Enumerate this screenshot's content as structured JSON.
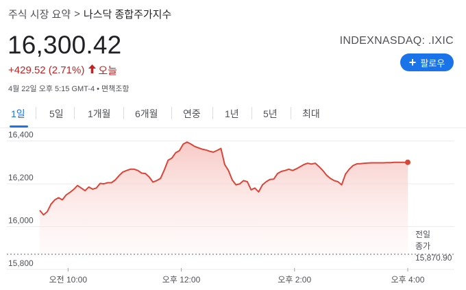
{
  "breadcrumb": {
    "root": "주식 시장 요약",
    "separator": ">",
    "current": "나스닥 종합주가지수"
  },
  "quote": {
    "price": "16,300.42",
    "change": "+429.52 (2.71%)",
    "direction_icon": "arrow-up-icon",
    "period": "오늘",
    "timestamp": "4월 22일 오후 5:15 GMT-4 • 면책조항",
    "ticker": "INDEXNASDAQ: .IXIC"
  },
  "follow_button": {
    "label": "팔로우",
    "icon": "plus-icon",
    "color": "#1a73e8"
  },
  "tabs": [
    {
      "label": "1일",
      "active": true
    },
    {
      "label": "5일",
      "active": false
    },
    {
      "label": "1개월",
      "active": false
    },
    {
      "label": "6개월",
      "active": false
    },
    {
      "label": "연중",
      "active": false
    },
    {
      "label": "1년",
      "active": false
    },
    {
      "label": "5년",
      "active": false
    },
    {
      "label": "최대",
      "active": false
    }
  ],
  "colors": {
    "down_up_accent": "#c5221f",
    "line": "#db4437",
    "fill_top": "#f6c3bf",
    "accent": "#1a73e8"
  },
  "chart_data": {
    "type": "line",
    "title": "",
    "xlabel": "",
    "ylabel": "",
    "y_ticks": [
      "16,400",
      "16,200",
      "16,000",
      "15,800"
    ],
    "y_tick_values": [
      16400,
      16200,
      16000,
      15800
    ],
    "ylim": [
      15800,
      16450
    ],
    "x_ticks": [
      "오전 10:00",
      "오후 12:00",
      "오후 2:00",
      "오후 4:00"
    ],
    "x_tick_minutes": [
      600,
      720,
      840,
      960
    ],
    "xlim": [
      570,
      960
    ],
    "grid": true,
    "previous_close": {
      "label_line1": "전일",
      "label_line2": "종가",
      "value": 15870.9,
      "value_label": "15,870.90"
    },
    "last_point": {
      "minute": 960,
      "value": 16300.42
    },
    "series": [
      {
        "x": [
          570,
          574,
          578,
          582,
          586,
          590,
          594,
          598,
          602,
          606,
          610,
          614,
          618,
          622,
          626,
          630,
          634,
          638,
          642,
          646,
          650,
          654,
          658,
          662,
          666,
          670,
          674,
          678,
          682,
          686,
          690,
          694,
          698,
          702,
          706,
          710,
          714,
          718,
          722,
          726,
          730,
          734,
          738,
          742,
          746,
          750,
          754,
          758,
          762,
          766,
          770,
          774,
          778,
          782,
          786,
          790,
          794,
          798,
          802,
          806,
          810,
          814,
          818,
          822,
          826,
          830,
          834,
          838,
          842,
          846,
          850,
          854,
          858,
          862,
          866,
          870,
          874,
          878,
          882,
          886,
          890,
          894,
          898,
          902,
          906,
          910,
          914,
          918,
          922,
          926,
          930,
          934,
          938,
          942,
          946,
          950,
          954,
          960
        ],
        "y": [
          16076,
          16055,
          16070,
          16105,
          16125,
          16135,
          16125,
          16148,
          16160,
          16174,
          16192,
          16180,
          16168,
          16185,
          16175,
          16180,
          16202,
          16200,
          16205,
          16205,
          16218,
          16238,
          16255,
          16262,
          16268,
          16268,
          16262,
          16250,
          16248,
          16232,
          16208,
          16215,
          16225,
          16265,
          16310,
          16320,
          16345,
          16355,
          16385,
          16395,
          16386,
          16375,
          16368,
          16362,
          16358,
          16352,
          16348,
          16356,
          16365,
          16290,
          16262,
          16218,
          16195,
          16200,
          16215,
          16210,
          16172,
          16180,
          16162,
          16195,
          16210,
          16220,
          16222,
          16248,
          16258,
          16262,
          16268,
          16262,
          16270,
          16280,
          16290,
          16296,
          16292,
          16296,
          16280,
          16262,
          16240,
          16225,
          16215,
          16210,
          16195,
          16245,
          16268,
          16285,
          16293,
          16294,
          16296,
          16297,
          16298,
          16298,
          16298,
          16298,
          16299,
          16299,
          16300,
          16300,
          16300,
          16300.42
        ]
      }
    ]
  }
}
